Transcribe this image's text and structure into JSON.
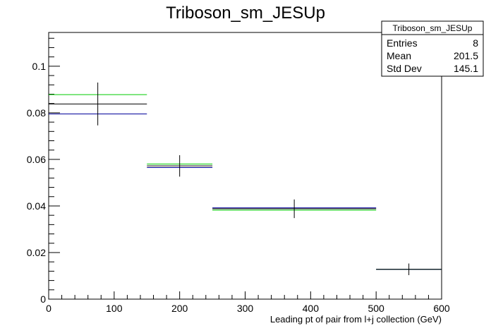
{
  "chart_data": {
    "type": "line",
    "title": "Triboson_sm_JESUp",
    "xlabel": "Leading pt of pair from l+j collection (GeV)",
    "ylabel": "",
    "xlim": [
      0,
      600
    ],
    "ylim": [
      0,
      0.1145
    ],
    "x_ticks": [
      0,
      100,
      200,
      300,
      400,
      500,
      600
    ],
    "y_ticks": [
      0,
      0.02,
      0.04,
      0.06,
      0.08,
      0.1
    ],
    "x_tick_labels": [
      "0",
      "100",
      "200",
      "300",
      "400",
      "500",
      "600"
    ],
    "y_tick_labels": [
      "0",
      "0.02",
      "0.04",
      "0.06",
      "0.08",
      "0.1"
    ],
    "bin_edges": [
      0,
      150,
      250,
      500,
      600
    ],
    "grid": false,
    "legend": "none",
    "series": [
      {
        "color": "#00cc00",
        "values": [
          0.0878,
          0.058,
          0.0382,
          0.0128
        ],
        "errors": [
          0,
          0,
          0,
          0
        ]
      },
      {
        "color": "#000099",
        "values": [
          0.0795,
          0.0565,
          0.0392,
          0.0128
        ],
        "errors": [
          0,
          0,
          0,
          0
        ]
      },
      {
        "color": "#000000",
        "values": [
          0.0838,
          0.0572,
          0.0388,
          0.0128
        ],
        "errors": [
          0.0092,
          0.0046,
          0.004,
          0.0025
        ]
      }
    ],
    "stats_box": {
      "title": "Triboson_sm_JESUp",
      "rows": [
        {
          "label": "Entries",
          "value": "8"
        },
        {
          "label": "Mean",
          "value": "201.5"
        },
        {
          "label": "Std Dev",
          "value": "145.1"
        }
      ]
    }
  }
}
